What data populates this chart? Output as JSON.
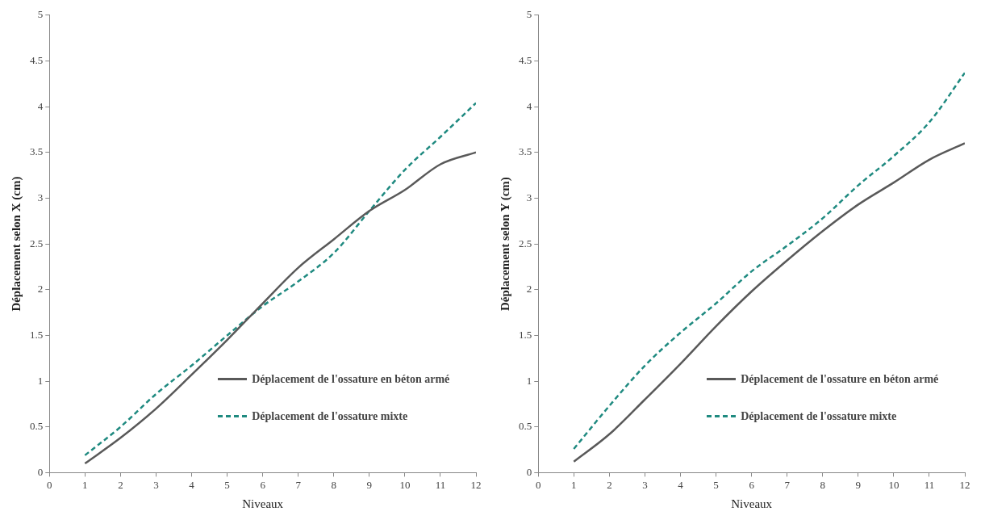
{
  "chart_data": [
    {
      "type": "line",
      "xlabel": "Niveaux",
      "ylabel": "Déplacement selon X (cm)",
      "xlim": [
        0,
        12
      ],
      "xticks": [
        0,
        1,
        2,
        3,
        4,
        5,
        6,
        7,
        8,
        9,
        10,
        11,
        12
      ],
      "ylim": [
        0,
        5
      ],
      "yticks": [
        0,
        0.5,
        1,
        1.5,
        2,
        2.5,
        3,
        3.5,
        4,
        4.5,
        5
      ],
      "grid": false,
      "legend": "bottom right",
      "x": [
        1,
        2,
        3,
        4,
        5,
        6,
        7,
        8,
        9,
        10,
        11,
        12
      ],
      "series": [
        {
          "name": "Déplacement de l'ossature en béton armé",
          "color": "#595959",
          "line_style": "solid",
          "values": [
            0.1,
            0.38,
            0.7,
            1.07,
            1.45,
            1.85,
            2.24,
            2.55,
            2.86,
            3.09,
            3.37,
            3.5
          ]
        },
        {
          "name": "Déplacement de l'ossature mixte",
          "color": "#1f8a80",
          "line_style": "dashed",
          "values": [
            0.19,
            0.5,
            0.86,
            1.17,
            1.5,
            1.82,
            2.09,
            2.4,
            2.86,
            3.31,
            3.67,
            4.04
          ]
        }
      ]
    },
    {
      "type": "line",
      "xlabel": "Niveaux",
      "ylabel": "Déplacement selon Y (cm)",
      "xlim": [
        0,
        12
      ],
      "xticks": [
        0,
        1,
        2,
        3,
        4,
        5,
        6,
        7,
        8,
        9,
        10,
        11,
        12
      ],
      "ylim": [
        0,
        5
      ],
      "yticks": [
        0,
        0.5,
        1,
        1.5,
        2,
        2.5,
        3,
        3.5,
        4,
        4.5,
        5
      ],
      "grid": false,
      "legend": "bottom right",
      "x": [
        1,
        2,
        3,
        4,
        5,
        6,
        7,
        8,
        9,
        10,
        11,
        12
      ],
      "series": [
        {
          "name": "Déplacement de l'ossature en béton armé",
          "color": "#595959",
          "line_style": "solid",
          "values": [
            0.12,
            0.42,
            0.8,
            1.19,
            1.6,
            1.98,
            2.32,
            2.64,
            2.93,
            3.17,
            3.42,
            3.6
          ]
        },
        {
          "name": "Déplacement de l'ossature mixte",
          "color": "#1f8a80",
          "line_style": "dashed",
          "values": [
            0.26,
            0.73,
            1.17,
            1.53,
            1.85,
            2.2,
            2.48,
            2.78,
            3.14,
            3.46,
            3.83,
            4.37
          ]
        }
      ]
    }
  ]
}
